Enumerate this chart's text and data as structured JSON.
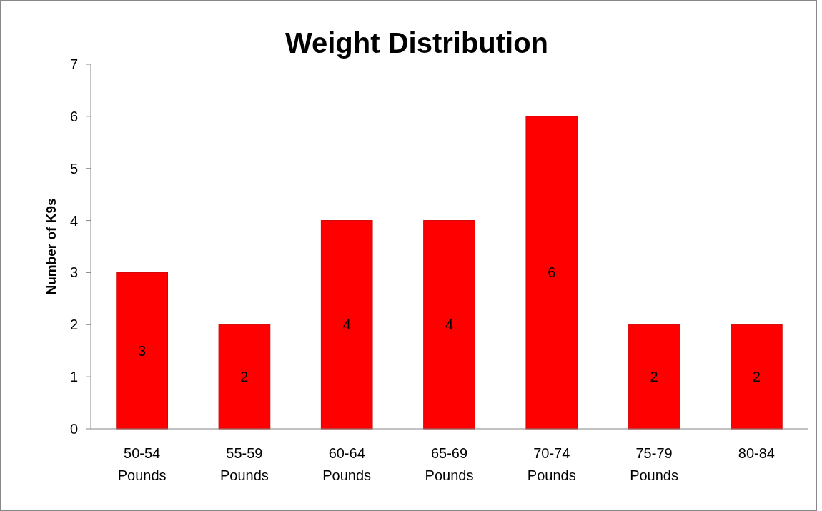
{
  "chart_data": {
    "type": "bar",
    "title": "Weight Distribution",
    "ylabel": "Number of K9s",
    "categories": [
      "50-54 Pounds",
      "55-59 Pounds",
      "60-64 Pounds",
      "65-69 Pounds",
      "70-74 Pounds",
      "75-79 Pounds",
      "80-84"
    ],
    "values": [
      3,
      2,
      4,
      4,
      6,
      2,
      2
    ],
    "color": "#ff0000",
    "ylim": [
      0,
      7
    ],
    "yticks": [
      0,
      1,
      2,
      3,
      4,
      5,
      6,
      7
    ],
    "data_labels": true
  }
}
